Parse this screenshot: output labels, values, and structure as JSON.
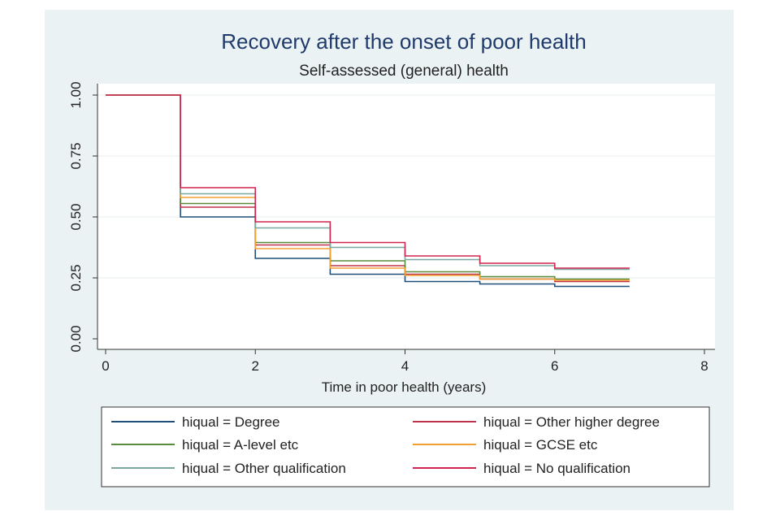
{
  "chart_data": {
    "type": "line",
    "title": "Recovery after the onset of poor health",
    "subtitle": "Self-assessed (general) health",
    "xlabel": "Time in poor health (years)",
    "ylabel": "",
    "xlim": [
      0,
      8
    ],
    "ylim": [
      0,
      1
    ],
    "xticks": [
      0,
      2,
      4,
      6,
      8
    ],
    "xtick_labels": [
      "0",
      "2",
      "4",
      "6",
      "8"
    ],
    "yticks": [
      0,
      0.25,
      0.5,
      0.75,
      1
    ],
    "ytick_labels": [
      "0.00",
      "0.25",
      "0.50",
      "0.75",
      "1.00"
    ],
    "grid": "horizontal",
    "legend_position": "bottom",
    "step": true,
    "x": [
      0,
      1,
      2,
      3,
      4,
      5,
      6,
      7
    ],
    "series": [
      {
        "name": "hiqual = Degree",
        "color": "#1f4e79",
        "values": [
          1.0,
          0.5,
          0.33,
          0.265,
          0.235,
          0.225,
          0.215,
          0.215
        ]
      },
      {
        "name": "hiqual = Other higher degree",
        "color": "#c0334d",
        "values": [
          1.0,
          0.54,
          0.385,
          0.3,
          0.265,
          0.245,
          0.235,
          0.235
        ]
      },
      {
        "name": "hiqual = A-level etc",
        "color": "#5a8a3c",
        "values": [
          1.0,
          0.555,
          0.395,
          0.32,
          0.275,
          0.255,
          0.245,
          0.245
        ]
      },
      {
        "name": "hiqual = GCSE etc",
        "color": "#f0a030",
        "values": [
          1.0,
          0.58,
          0.37,
          0.29,
          0.26,
          0.245,
          0.24,
          0.24
        ]
      },
      {
        "name": "hiqual = Other qualification",
        "color": "#7aa8a0",
        "values": [
          1.0,
          0.595,
          0.455,
          0.375,
          0.325,
          0.3,
          0.285,
          0.285
        ]
      },
      {
        "name": "hiqual = No qualification",
        "color": "#d0254f",
        "values": [
          1.0,
          0.62,
          0.48,
          0.395,
          0.34,
          0.31,
          0.29,
          0.29
        ]
      }
    ]
  }
}
